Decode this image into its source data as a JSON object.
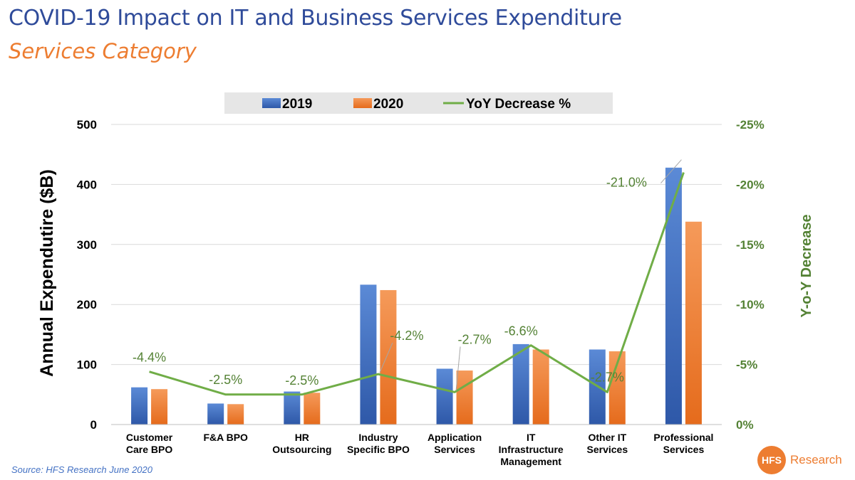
{
  "header": {
    "title": "COVID-19 Impact on IT and Business Services Expenditure",
    "subtitle": "Services Category"
  },
  "footer": {
    "source": "Source: HFS Research June 2020",
    "logo_mark": "HFS",
    "logo_text": "Research"
  },
  "colors": {
    "series_2019": "#4472c4",
    "series_2020": "#ed7d31",
    "yoy_line": "#70ad47",
    "title": "#2f4b9a",
    "subtitle": "#ed7d31"
  },
  "chart_data": {
    "type": "bar",
    "categories": [
      [
        "Customer",
        "Care BPO"
      ],
      [
        "F&A BPO"
      ],
      [
        "HR",
        "Outsourcing"
      ],
      [
        "Industry",
        "Specific BPO"
      ],
      [
        "Application",
        "Services"
      ],
      [
        "IT",
        "Infrastructure",
        "Management"
      ],
      [
        "Other IT",
        "Services"
      ],
      [
        "Professional",
        "Services"
      ]
    ],
    "series": [
      {
        "name": "2019",
        "values": [
          62,
          35,
          55,
          233,
          93,
          134,
          125,
          428
        ]
      },
      {
        "name": "2020",
        "values": [
          59,
          34,
          53,
          224,
          90,
          125,
          122,
          338
        ]
      }
    ],
    "line_series": {
      "name": "YoY Decrease %",
      "values": [
        -4.4,
        -2.5,
        -2.5,
        -4.2,
        -2.7,
        -6.6,
        -2.7,
        -21.0
      ],
      "labels": [
        "-4.4%",
        "-2.5%",
        "-2.5%",
        "-4.2%",
        "-2.7%",
        "-6.6%",
        "-2.7%",
        "-21.0%"
      ]
    },
    "ylabel": "Annual Expendutire ($B)",
    "ylim": [
      0,
      500
    ],
    "yticks": [
      "0",
      "100",
      "200",
      "300",
      "400",
      "500"
    ],
    "y2label": "Y-o-Y Decrease",
    "y2lim": [
      0,
      -25
    ],
    "y2ticks": [
      "0%",
      "-5%",
      "-10%",
      "-15%",
      "-20%",
      "-25%"
    ],
    "legend_labels": [
      "2019",
      "2020",
      "YoY Decrease %"
    ],
    "legend_position": "top-center",
    "grid": true
  }
}
